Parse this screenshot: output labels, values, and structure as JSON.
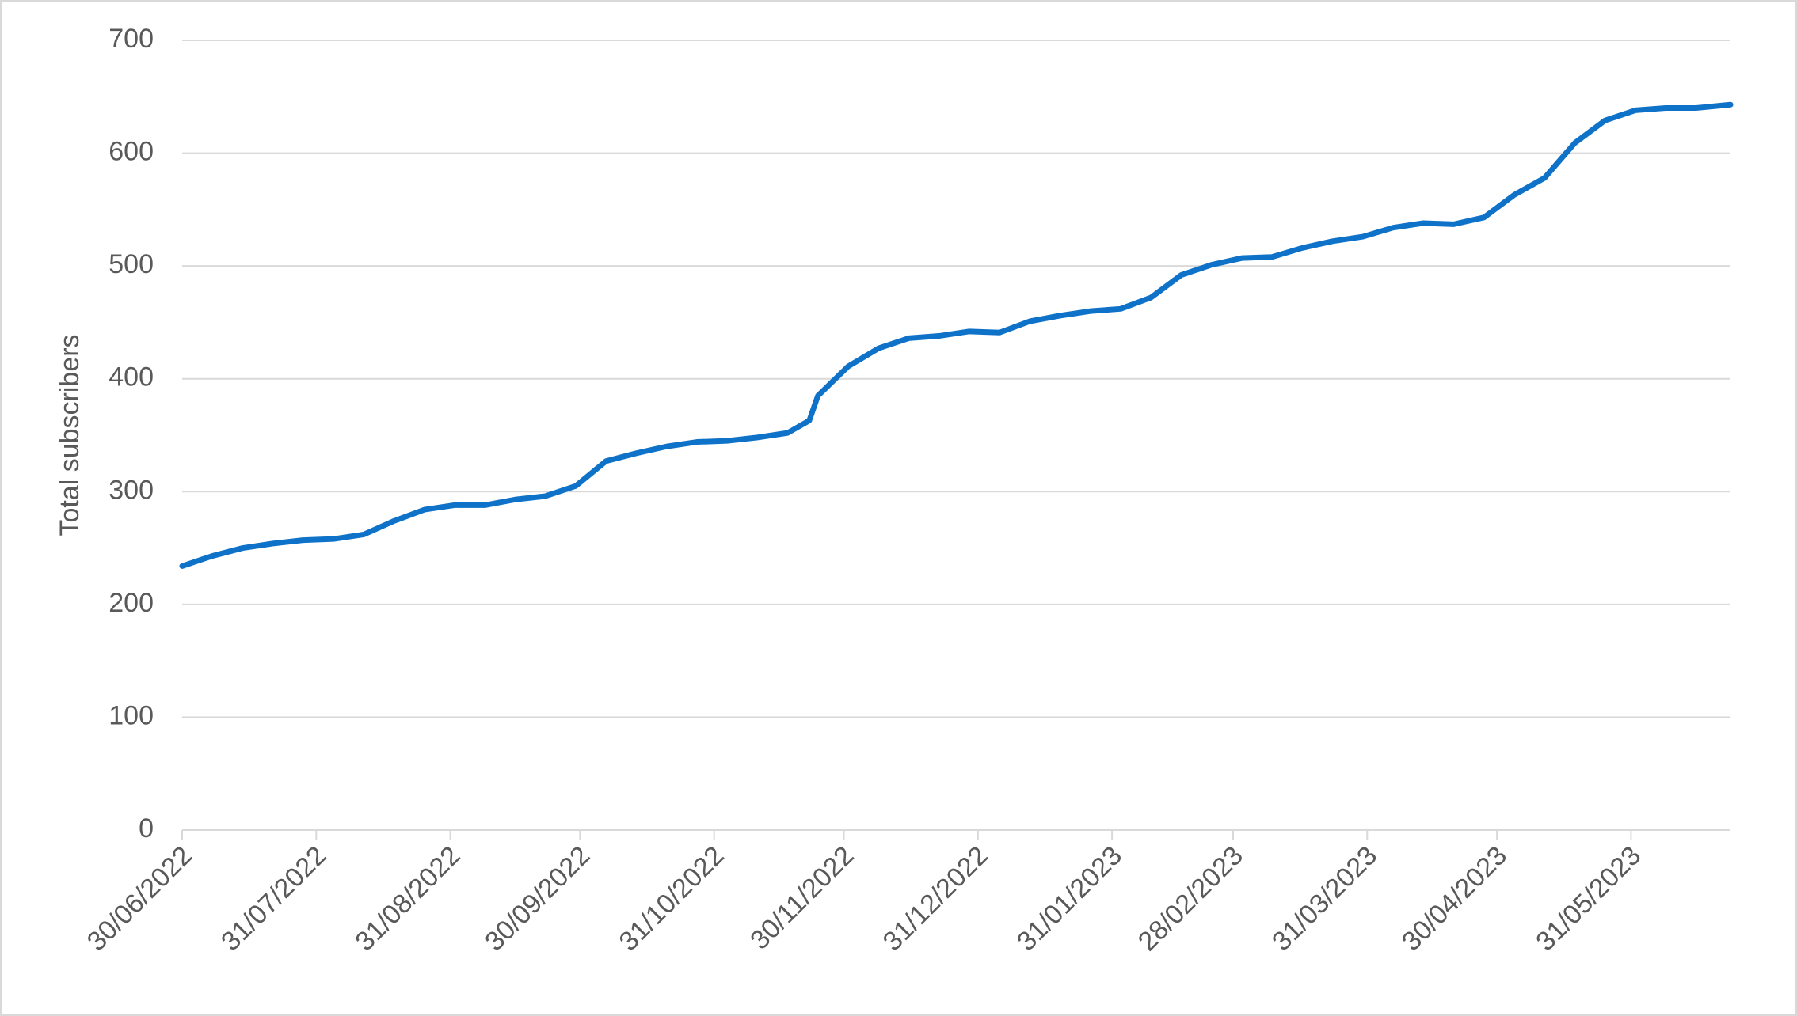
{
  "chart_data": {
    "type": "line",
    "y_label": "Total subscribers",
    "x": [
      "30/06/2022",
      "07/07/2022",
      "14/07/2022",
      "21/07/2022",
      "28/07/2022",
      "04/08/2022",
      "11/08/2022",
      "18/08/2022",
      "25/08/2022",
      "01/09/2022",
      "08/09/2022",
      "15/09/2022",
      "22/09/2022",
      "29/09/2022",
      "06/10/2022",
      "13/10/2022",
      "20/10/2022",
      "27/10/2022",
      "03/11/2022",
      "10/11/2022",
      "17/11/2022",
      "22/11/2022",
      "24/11/2022",
      "01/12/2022",
      "08/12/2022",
      "15/12/2022",
      "22/12/2022",
      "29/12/2022",
      "05/01/2023",
      "12/01/2023",
      "19/01/2023",
      "26/01/2023",
      "02/02/2023",
      "09/02/2023",
      "16/02/2023",
      "23/02/2023",
      "02/03/2023",
      "09/03/2023",
      "16/03/2023",
      "23/03/2023",
      "30/03/2023",
      "06/04/2023",
      "13/04/2023",
      "20/04/2023",
      "27/04/2023",
      "04/05/2023",
      "11/05/2023",
      "18/05/2023",
      "25/05/2023",
      "01/06/2023",
      "08/06/2023",
      "15/06/2023",
      "23/06/2023"
    ],
    "series": [
      {
        "name": "Total subscribers",
        "color": "#0f72c9",
        "values": [
          234,
          243,
          250,
          254,
          257,
          258,
          262,
          274,
          284,
          288,
          288,
          293,
          296,
          305,
          327,
          334,
          340,
          344,
          345,
          348,
          352,
          363,
          385,
          411,
          427,
          436,
          438,
          442,
          441,
          451,
          456,
          460,
          462,
          472,
          492,
          501,
          507,
          508,
          516,
          522,
          526,
          534,
          538,
          537,
          543,
          563,
          578,
          609,
          629,
          638,
          640,
          640,
          643
        ]
      }
    ],
    "xlim": [
      "30/06/2022",
      "23/06/2023"
    ],
    "xticks": [
      "30/06/2022",
      "31/07/2022",
      "31/08/2022",
      "30/09/2022",
      "31/10/2022",
      "30/11/2022",
      "31/12/2022",
      "31/01/2023",
      "28/02/2023",
      "31/03/2023",
      "30/04/2023",
      "31/05/2023"
    ],
    "ylim": [
      0,
      700
    ],
    "yticks": [
      0,
      100,
      200,
      300,
      400,
      500,
      600,
      700
    ],
    "grid": true
  }
}
